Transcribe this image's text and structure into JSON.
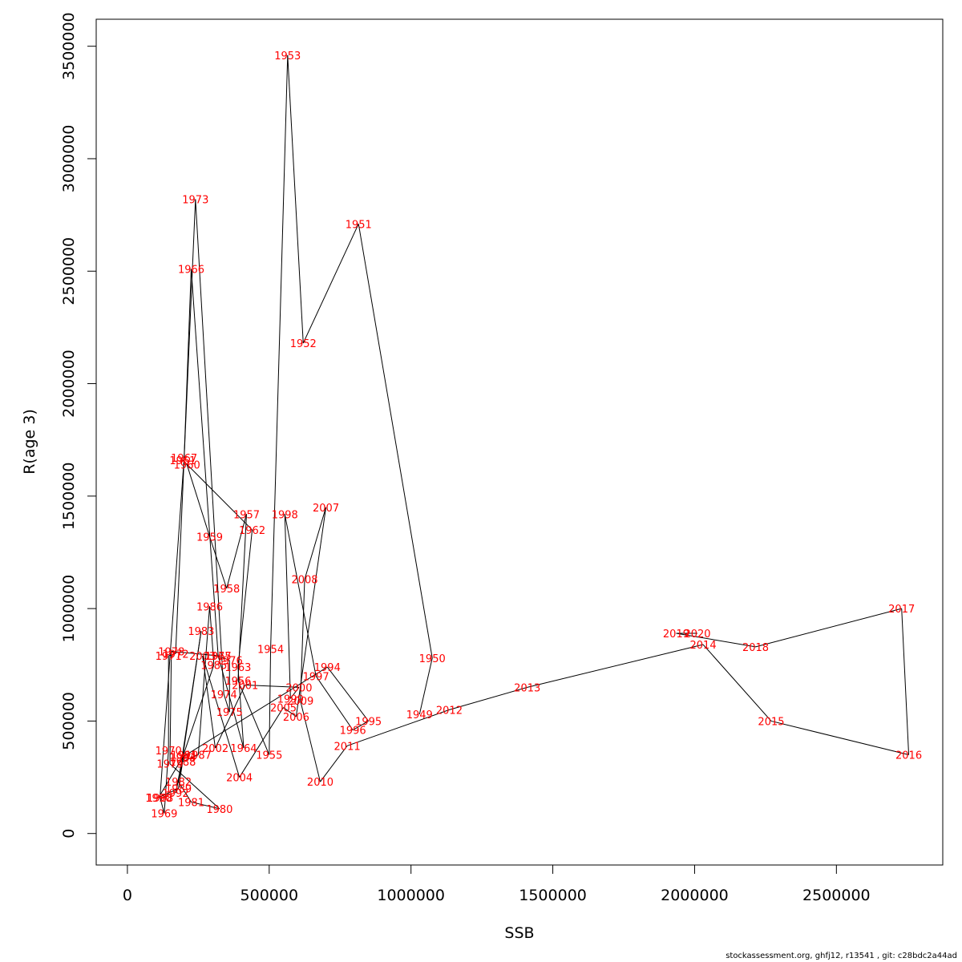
{
  "footer": "stockassessment.org, ghfj12, r13541 , git: c28bdc2a44ad",
  "chart_data": {
    "type": "line",
    "xlabel": "SSB",
    "ylabel": "R(age 3)",
    "xlim": [
      -110000,
      2875000
    ],
    "ylim": [
      -140000,
      3620000
    ],
    "xticks": [
      0,
      500000,
      1000000,
      1500000,
      2000000,
      2500000
    ],
    "xtick_labels": [
      "0",
      "500000",
      "1000000",
      "1500000",
      "2000000",
      "2500000"
    ],
    "yticks": [
      0,
      500000,
      1000000,
      1500000,
      2000000,
      2500000,
      3000000,
      3500000
    ],
    "ytick_labels": [
      "0",
      "500000",
      "1000000",
      "1500000",
      "2000000",
      "2500000",
      "3000000",
      "3500000"
    ],
    "label_color": "#ff0000",
    "line_color": "#000000",
    "points": [
      {
        "year": "1949",
        "ssb": 1030000,
        "r": 530000
      },
      {
        "year": "1950",
        "ssb": 1075000,
        "r": 780000
      },
      {
        "year": "1951",
        "ssb": 815000,
        "r": 2710000
      },
      {
        "year": "1952",
        "ssb": 620000,
        "r": 2180000
      },
      {
        "year": "1953",
        "ssb": 565000,
        "r": 3460000
      },
      {
        "year": "1954",
        "ssb": 505000,
        "r": 820000
      },
      {
        "year": "1955",
        "ssb": 500000,
        "r": 350000
      },
      {
        "year": "1956",
        "ssb": 390000,
        "r": 680000
      },
      {
        "year": "1957",
        "ssb": 420000,
        "r": 1420000
      },
      {
        "year": "1958",
        "ssb": 350000,
        "r": 1090000
      },
      {
        "year": "1959",
        "ssb": 290000,
        "r": 1320000
      },
      {
        "year": "1960",
        "ssb": 210000,
        "r": 1640000
      },
      {
        "year": "1961",
        "ssb": 195000,
        "r": 1660000
      },
      {
        "year": "1962",
        "ssb": 440000,
        "r": 1350000
      },
      {
        "year": "1963",
        "ssb": 390000,
        "r": 740000
      },
      {
        "year": "1964",
        "ssb": 410000,
        "r": 380000
      },
      {
        "year": "1965",
        "ssb": 320000,
        "r": 790000
      },
      {
        "year": "1966",
        "ssb": 225000,
        "r": 2510000
      },
      {
        "year": "1967",
        "ssb": 200000,
        "r": 1670000
      },
      {
        "year": "1968",
        "ssb": 115000,
        "r": 160000
      },
      {
        "year": "1969",
        "ssb": 130000,
        "r": 90000
      },
      {
        "year": "1970",
        "ssb": 145000,
        "r": 370000
      },
      {
        "year": "1971",
        "ssb": 145000,
        "r": 790000
      },
      {
        "year": "1972",
        "ssb": 170000,
        "r": 800000
      },
      {
        "year": "1973",
        "ssb": 240000,
        "r": 2820000
      },
      {
        "year": "1974",
        "ssb": 340000,
        "r": 620000
      },
      {
        "year": "1975",
        "ssb": 360000,
        "r": 540000
      },
      {
        "year": "1976",
        "ssb": 360000,
        "r": 770000
      },
      {
        "year": "1977",
        "ssb": 320000,
        "r": 790000
      },
      {
        "year": "1978",
        "ssb": 155000,
        "r": 810000
      },
      {
        "year": "1979",
        "ssb": 150000,
        "r": 310000
      },
      {
        "year": "1980",
        "ssb": 325000,
        "r": 110000
      },
      {
        "year": "1981",
        "ssb": 225000,
        "r": 140000
      },
      {
        "year": "1982",
        "ssb": 180000,
        "r": 230000
      },
      {
        "year": "1983",
        "ssb": 260000,
        "r": 900000
      },
      {
        "year": "1984",
        "ssb": 195000,
        "r": 340000
      },
      {
        "year": "1985",
        "ssb": 305000,
        "r": 750000
      },
      {
        "year": "1986",
        "ssb": 290000,
        "r": 1010000
      },
      {
        "year": "1987",
        "ssb": 250000,
        "r": 350000
      },
      {
        "year": "1988",
        "ssb": 195000,
        "r": 320000
      },
      {
        "year": "1989",
        "ssb": 180000,
        "r": 200000
      },
      {
        "year": "1990",
        "ssb": 110000,
        "r": 160000
      },
      {
        "year": "1991",
        "ssb": 200000,
        "r": 350000
      },
      {
        "year": "1992",
        "ssb": 170000,
        "r": 180000
      },
      {
        "year": "1993",
        "ssb": 195000,
        "r": 340000
      },
      {
        "year": "1994",
        "ssb": 705000,
        "r": 740000
      },
      {
        "year": "1995",
        "ssb": 850000,
        "r": 500000
      },
      {
        "year": "1996",
        "ssb": 795000,
        "r": 460000
      },
      {
        "year": "1997",
        "ssb": 665000,
        "r": 700000
      },
      {
        "year": "1998",
        "ssb": 555000,
        "r": 1420000
      },
      {
        "year": "1999",
        "ssb": 575000,
        "r": 600000
      },
      {
        "year": "2000",
        "ssb": 605000,
        "r": 650000
      },
      {
        "year": "2001",
        "ssb": 415000,
        "r": 660000
      },
      {
        "year": "2002",
        "ssb": 310000,
        "r": 380000
      },
      {
        "year": "2003",
        "ssb": 265000,
        "r": 790000
      },
      {
        "year": "2004",
        "ssb": 395000,
        "r": 250000
      },
      {
        "year": "2005",
        "ssb": 550000,
        "r": 560000
      },
      {
        "year": "2006",
        "ssb": 595000,
        "r": 520000
      },
      {
        "year": "2007",
        "ssb": 700000,
        "r": 1450000
      },
      {
        "year": "2008",
        "ssb": 625000,
        "r": 1130000
      },
      {
        "year": "2009",
        "ssb": 610000,
        "r": 590000
      },
      {
        "year": "2010",
        "ssb": 680000,
        "r": 230000
      },
      {
        "year": "2011",
        "ssb": 775000,
        "r": 390000
      },
      {
        "year": "2012",
        "ssb": 1135000,
        "r": 550000
      },
      {
        "year": "2013",
        "ssb": 1410000,
        "r": 650000
      },
      {
        "year": "2014",
        "ssb": 2030000,
        "r": 840000
      },
      {
        "year": "2015",
        "ssb": 2270000,
        "r": 500000
      },
      {
        "year": "2016",
        "ssb": 2755000,
        "r": 350000
      },
      {
        "year": "2017",
        "ssb": 2730000,
        "r": 1000000
      },
      {
        "year": "2018",
        "ssb": 2215000,
        "r": 830000
      },
      {
        "year": "2019",
        "ssb": 1935000,
        "r": 890000
      },
      {
        "year": "2020",
        "ssb": 2010000,
        "r": 890000
      }
    ]
  }
}
